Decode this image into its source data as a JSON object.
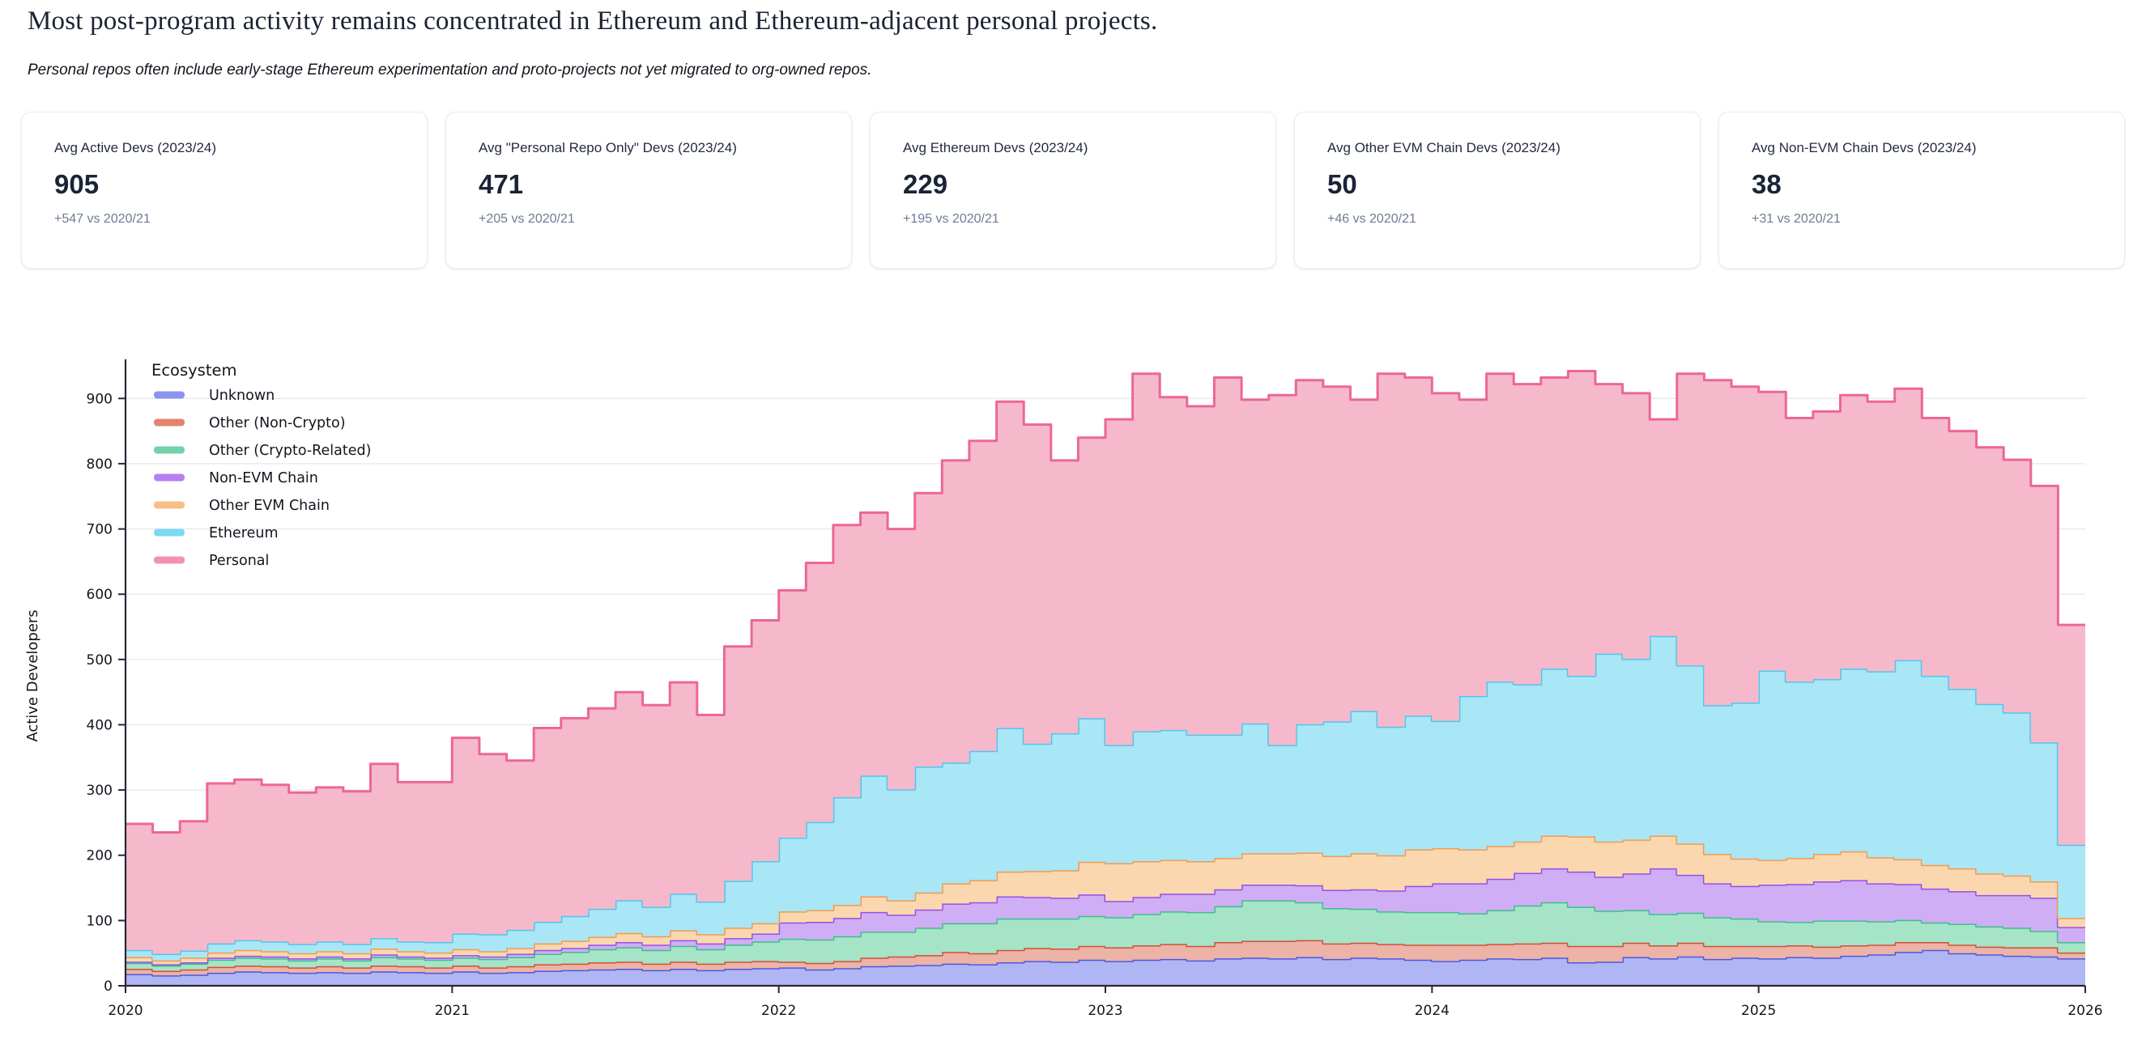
{
  "page": {
    "title": "Most post-program activity remains concentrated in Ethereum and Ethereum-adjacent personal projects.",
    "subtitle": "Personal repos often include early-stage Ethereum experimentation and proto-projects not yet migrated to org-owned repos."
  },
  "stat_cards": [
    {
      "label": "Avg Active Devs (2023/24)",
      "value": "905",
      "delta": "+547 vs 2020/21"
    },
    {
      "label": "Avg \"Personal Repo Only\" Devs (2023/24)",
      "value": "471",
      "delta": "+205 vs 2020/21"
    },
    {
      "label": "Avg Ethereum Devs (2023/24)",
      "value": "229",
      "delta": "+195 vs 2020/21"
    },
    {
      "label": "Avg Other EVM Chain Devs (2023/24)",
      "value": "50",
      "delta": "+46 vs 2020/21"
    },
    {
      "label": "Avg Non-EVM Chain Devs (2023/24)",
      "value": "38",
      "delta": "+31 vs 2020/21"
    }
  ],
  "chart_data": {
    "type": "area",
    "variant": "stacked-step",
    "legend_title": "Ecosystem",
    "ylabel": "Active Developers",
    "xlabel": "",
    "x_start_year": 2020,
    "points_per_year": 12,
    "x_ticks": [
      2020,
      2021,
      2022,
      2023,
      2024,
      2025,
      2026
    ],
    "y_ticks": [
      0,
      100,
      200,
      300,
      400,
      500,
      600,
      700,
      800,
      900
    ],
    "ylim": [
      0,
      950
    ],
    "grid": "horizontal",
    "legend_position": "top-left-inside",
    "series": [
      {
        "name": "Unknown",
        "stroke": "#4b58e2",
        "fill": "#b0b6f3",
        "legend_swatch": "#8a93ee",
        "values": [
          18,
          16,
          17,
          20,
          22,
          21,
          20,
          21,
          20,
          22,
          21,
          20,
          22,
          20,
          21,
          23,
          24,
          25,
          26,
          24,
          26,
          24,
          26,
          27,
          28,
          25,
          27,
          30,
          31,
          32,
          34,
          33,
          36,
          38,
          37,
          40,
          38,
          40,
          41,
          39,
          42,
          43,
          42,
          44,
          41,
          43,
          42,
          40,
          38,
          40,
          42,
          41,
          43,
          36,
          37,
          44,
          42,
          45,
          41,
          43,
          42,
          44,
          43,
          46,
          48,
          52,
          55,
          50,
          48,
          46,
          45,
          42
        ]
      },
      {
        "name": "Other (Non-Crypto)",
        "stroke": "#d14f38",
        "fill": "#ecb3a6",
        "legend_swatch": "#e3846e",
        "values": [
          8,
          7,
          8,
          9,
          9,
          9,
          8,
          9,
          8,
          9,
          9,
          8,
          9,
          8,
          9,
          10,
          10,
          11,
          11,
          10,
          11,
          10,
          11,
          11,
          9,
          10,
          11,
          13,
          14,
          15,
          18,
          17,
          19,
          20,
          20,
          21,
          21,
          22,
          23,
          22,
          25,
          26,
          27,
          26,
          24,
          23,
          22,
          23,
          25,
          23,
          22,
          24,
          23,
          25,
          24,
          22,
          20,
          21,
          20,
          18,
          19,
          18,
          17,
          16,
          15,
          15,
          12,
          13,
          12,
          13,
          14,
          9
        ]
      },
      {
        "name": "Other (Crypto-Related)",
        "stroke": "#3cbe8c",
        "fill": "#a6e4c8",
        "legend_swatch": "#72d2ab",
        "values": [
          9,
          8,
          9,
          11,
          12,
          12,
          11,
          12,
          11,
          13,
          12,
          12,
          12,
          13,
          14,
          16,
          18,
          20,
          22,
          21,
          24,
          22,
          26,
          30,
          35,
          36,
          38,
          40,
          38,
          42,
          44,
          46,
          48,
          45,
          46,
          46,
          46,
          48,
          50,
          52,
          55,
          62,
          62,
          58,
          54,
          52,
          50,
          50,
          50,
          48,
          52,
          58,
          62,
          60,
          54,
          50,
          48,
          46,
          44,
          42,
          38,
          36,
          40,
          38,
          36,
          34,
          30,
          32,
          31,
          30,
          25,
          16
        ]
      },
      {
        "name": "Non-EVM Chain",
        "stroke": "#9350e6",
        "fill": "#d0aef5",
        "legend_swatch": "#b77ff0",
        "values": [
          2,
          2,
          2,
          3,
          3,
          3,
          3,
          3,
          3,
          4,
          3,
          3,
          4,
          4,
          5,
          6,
          6,
          7,
          8,
          8,
          9,
          9,
          10,
          12,
          25,
          27,
          28,
          30,
          26,
          28,
          30,
          32,
          34,
          33,
          32,
          33,
          25,
          26,
          27,
          28,
          26,
          24,
          24,
          26,
          28,
          30,
          32,
          40,
          44,
          46,
          48,
          50,
          52,
          54,
          52,
          56,
          70,
          58,
          52,
          50,
          56,
          58,
          60,
          62,
          58,
          55,
          52,
          50,
          48,
          50,
          51,
          23
        ]
      },
      {
        "name": "Other EVM Chain",
        "stroke": "#f19b51",
        "fill": "#fad7af",
        "legend_swatch": "#f7be86",
        "values": [
          7,
          6,
          7,
          8,
          9,
          8,
          8,
          8,
          8,
          9,
          8,
          8,
          9,
          8,
          9,
          10,
          11,
          12,
          14,
          13,
          15,
          14,
          16,
          16,
          17,
          18,
          20,
          24,
          22,
          26,
          31,
          34,
          38,
          40,
          42,
          50,
          58,
          55,
          52,
          50,
          48,
          48,
          48,
          50,
          52,
          55,
          54,
          56,
          54,
          52,
          50,
          48,
          50,
          54,
          54,
          52,
          50,
          48,
          45,
          42,
          38,
          40,
          42,
          44,
          40,
          38,
          36,
          35,
          33,
          30,
          25,
          14
        ]
      },
      {
        "name": "Ethereum",
        "stroke": "#53c6ea",
        "fill": "#a9e6f6",
        "legend_swatch": "#7ed9f2",
        "values": [
          11,
          10,
          11,
          14,
          15,
          15,
          14,
          15,
          14,
          16,
          15,
          16,
          24,
          26,
          28,
          33,
          38,
          43,
          50,
          45,
          56,
          50,
          72,
          95,
          113,
          135,
          165,
          185,
          170,
          193,
          185,
          198,
          220,
          195,
          210,
          220,
          181,
          199,
          199,
          194,
          189,
          199,
          166,
          197,
          206,
          218,
          197,
          205,
          195,
          235,
          252,
          241,
          256,
          246,
          288,
          277,
          306,
          273,
          228,
          239,
          290,
          270,
          268,
          280,
          285,
          305,
          290,
          275,
          260,
          250,
          213,
          112
        ]
      },
      {
        "name": "Personal",
        "stroke": "#ec6795",
        "fill": "#f6b9cc",
        "legend_swatch": "#f292b3",
        "values": [
          193,
          186,
          198,
          245,
          246,
          240,
          232,
          236,
          234,
          267,
          244,
          245,
          300,
          276,
          259,
          297,
          303,
          307,
          319,
          309,
          324,
          286,
          359,
          369,
          379,
          397,
          417,
          403,
          399,
          419,
          463,
          475,
          500,
          489,
          418,
          430,
          499,
          548,
          510,
          503,
          547,
          496,
          536,
          527,
          513,
          477,
          541,
          518,
          502,
          454,
          472,
          460,
          446,
          467,
          413,
          407,
          332,
          447,
          498,
          484,
          427,
          404,
          410,
          419,
          413,
          416,
          395,
          395,
          393,
          387,
          393,
          337
        ]
      }
    ]
  },
  "style": {
    "axis_color": "#272736",
    "grid_color": "#e9e9ef",
    "text_color": "#15151f"
  }
}
